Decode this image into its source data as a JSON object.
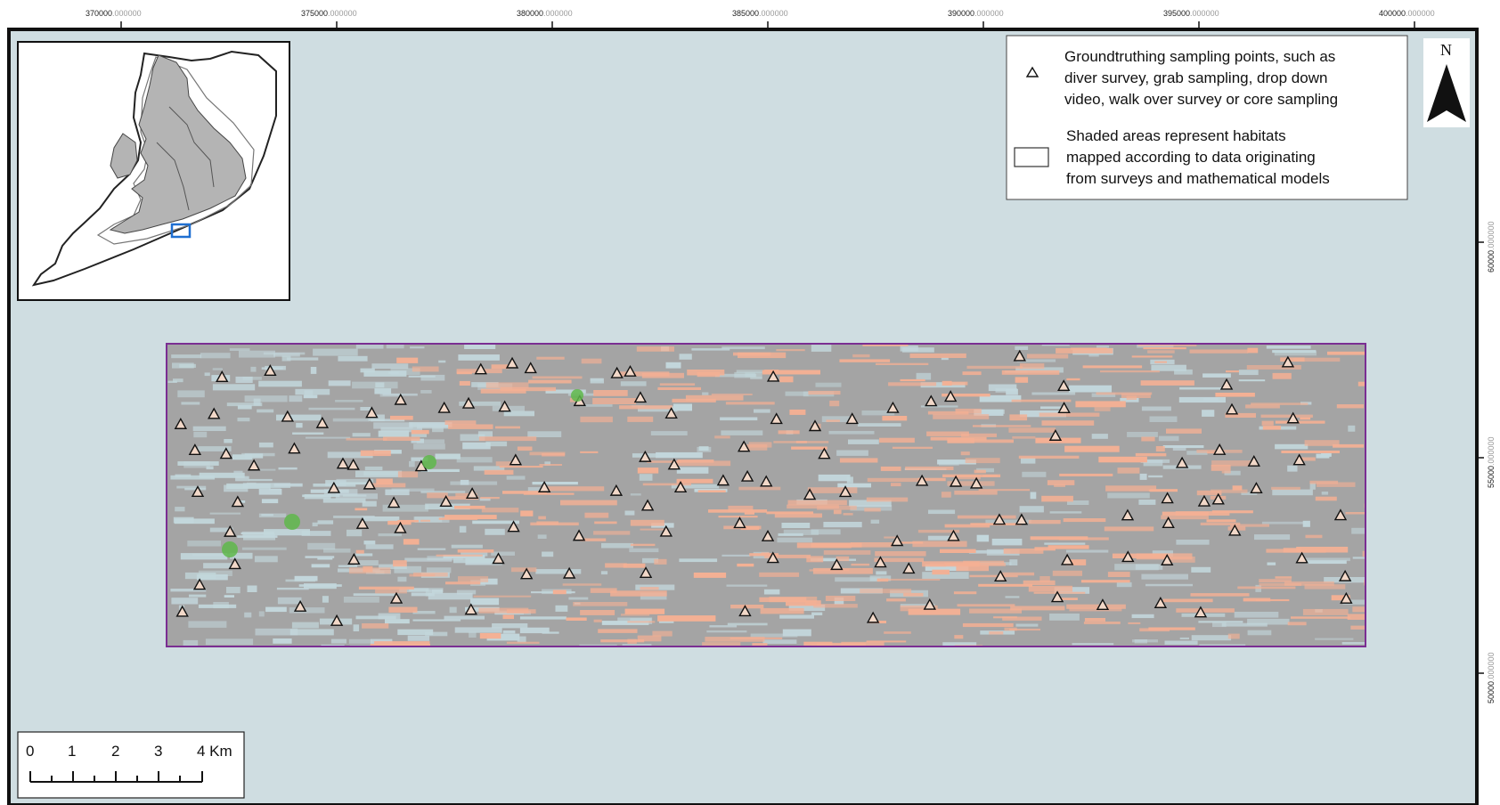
{
  "map": {
    "sea_color": "#cfdde1",
    "habitat_gray": "#a4a4a4",
    "habitat_orange": "#f4b094",
    "habitat_lightblue": "#c3d7dc",
    "survey_outline_color": "#7a2e92",
    "sample_point_color": "#5fb84b"
  },
  "axes": {
    "x_ticks": [
      {
        "main": "370000",
        "suffix": ".000000"
      },
      {
        "main": "375000",
        "suffix": ".000000"
      },
      {
        "main": "380000",
        "suffix": ".000000"
      },
      {
        "main": "385000",
        "suffix": ".000000"
      },
      {
        "main": "390000",
        "suffix": ".000000"
      },
      {
        "main": "395000",
        "suffix": ".000000"
      },
      {
        "main": "400000",
        "suffix": ".000000"
      }
    ],
    "y_ticks": [
      {
        "main": "60000",
        "suffix": ".000000"
      },
      {
        "main": "55000",
        "suffix": ".000000"
      },
      {
        "main": "50000",
        "suffix": ".000000"
      }
    ]
  },
  "legend": {
    "item1_lines": [
      "Groundtruthing sampling points, such as",
      "diver survey, grab sampling, drop down",
      "video, walk over survey or core sampling"
    ],
    "item2_lines": [
      "Shaded areas represent habitats",
      "mapped according to data originating",
      "from surveys and mathematical models"
    ]
  },
  "north_arrow": {
    "label": "N",
    "icon": "north-arrow-icon"
  },
  "scale_bar": {
    "labels": [
      "0",
      "1",
      "2",
      "3",
      "4 Km"
    ]
  },
  "inset": {
    "icon": "uk-locator-map-icon",
    "highlight_color": "#1f6fd1"
  }
}
